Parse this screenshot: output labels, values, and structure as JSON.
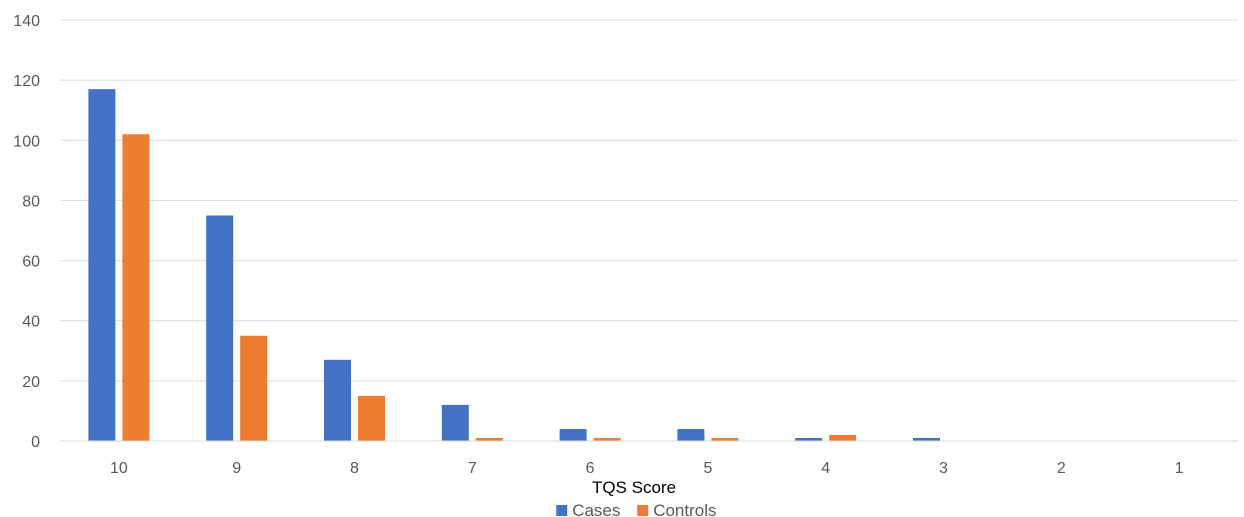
{
  "chart_data": {
    "type": "bar",
    "title": "",
    "xlabel": "TQS Score",
    "ylabel": "",
    "categories": [
      "10",
      "9",
      "8",
      "7",
      "6",
      "5",
      "4",
      "3",
      "2",
      "1"
    ],
    "series": [
      {
        "name": "Cases",
        "color": "#4472C4",
        "values": [
          117,
          75,
          27,
          12,
          4,
          4,
          1,
          1,
          0,
          0
        ]
      },
      {
        "name": "Controls",
        "color": "#ED7D31",
        "values": [
          102,
          35,
          15,
          1,
          1,
          1,
          2,
          0,
          0,
          0
        ]
      }
    ],
    "ylim": [
      0,
      140
    ],
    "yticks": [
      0,
      20,
      40,
      60,
      80,
      100,
      120,
      140
    ],
    "grid": true,
    "legend": "bottom"
  }
}
